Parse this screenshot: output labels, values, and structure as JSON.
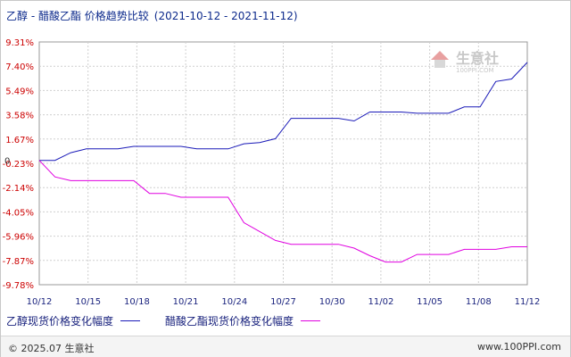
{
  "header": {
    "title": "乙醇 - 醋酸乙酯 价格趋势比较",
    "date_range": "(2021-10-12 - 2021-11-12)"
  },
  "watermark": {
    "brand": "生意社",
    "url": "100PPI.COM"
  },
  "legend": {
    "items": [
      {
        "label": "乙醇现货价格变化幅度",
        "color": "#1a1ab8"
      },
      {
        "label": "醋酸乙酯现货价格变化幅度",
        "color": "#e000e0"
      }
    ]
  },
  "footer": {
    "copyright": "© 2025.07 生意社",
    "url": "www.100PPI.com"
  },
  "colors": {
    "positive_tick": "#cc0000",
    "negative_tick": "#cc0000",
    "grid": "#cfcfcf",
    "axis": "#999999",
    "ethanol": "#1a1ab8",
    "ethyl_acetate": "#e000e0"
  },
  "chart_data": {
    "type": "line",
    "title": "乙醇 - 醋酸乙酯 价格趋势比较",
    "xlabel": "",
    "ylabel": "",
    "grid": true,
    "legend_position": "bottom",
    "x_ticks": [
      "10/12",
      "10/15",
      "10/18",
      "10/21",
      "10/24",
      "10/27",
      "10/30",
      "11/02",
      "11/05",
      "11/08",
      "11/12"
    ],
    "y_ticks": [
      "9.31%",
      "7.40%",
      "5.49%",
      "3.58%",
      "1.67%",
      "-0.23%",
      "-2.14%",
      "-4.05%",
      "-5.96%",
      "-7.87%",
      "-9.78%"
    ],
    "zero_label": "0",
    "ylim": [
      -9.78,
      9.31
    ],
    "x": [
      "2021-10-12",
      "2021-10-13",
      "2021-10-14",
      "2021-10-15",
      "2021-10-16",
      "2021-10-17",
      "2021-10-18",
      "2021-10-19",
      "2021-10-20",
      "2021-10-21",
      "2021-10-22",
      "2021-10-23",
      "2021-10-24",
      "2021-10-25",
      "2021-10-26",
      "2021-10-27",
      "2021-10-28",
      "2021-10-29",
      "2021-10-30",
      "2021-10-31",
      "2021-11-01",
      "2021-11-02",
      "2021-11-03",
      "2021-11-04",
      "2021-11-05",
      "2021-11-06",
      "2021-11-07",
      "2021-11-08",
      "2021-11-09",
      "2021-11-10",
      "2021-11-11",
      "2021-11-12"
    ],
    "series": [
      {
        "name": "乙醇现货价格变化幅度",
        "values": [
          0,
          0,
          0.6,
          0.9,
          0.9,
          0.9,
          1.1,
          1.1,
          1.1,
          1.1,
          0.9,
          0.9,
          0.9,
          1.3,
          1.4,
          1.7,
          3.3,
          3.3,
          3.3,
          3.3,
          3.1,
          3.8,
          3.8,
          3.8,
          3.7,
          3.7,
          3.7,
          4.2,
          4.2,
          6.2,
          6.4,
          7.7
        ]
      },
      {
        "name": "醋酸乙酯现货价格变化幅度",
        "values": [
          0,
          -1.3,
          -1.6,
          -1.6,
          -1.6,
          -1.6,
          -1.6,
          -2.6,
          -2.6,
          -2.9,
          -2.9,
          -2.9,
          -2.9,
          -4.9,
          -5.6,
          -6.3,
          -6.6,
          -6.6,
          -6.6,
          -6.6,
          -6.9,
          -7.5,
          -8.0,
          -8.0,
          -7.4,
          -7.4,
          -7.4,
          -7.0,
          -7.0,
          -7.0,
          -6.8,
          -6.8
        ]
      }
    ]
  }
}
